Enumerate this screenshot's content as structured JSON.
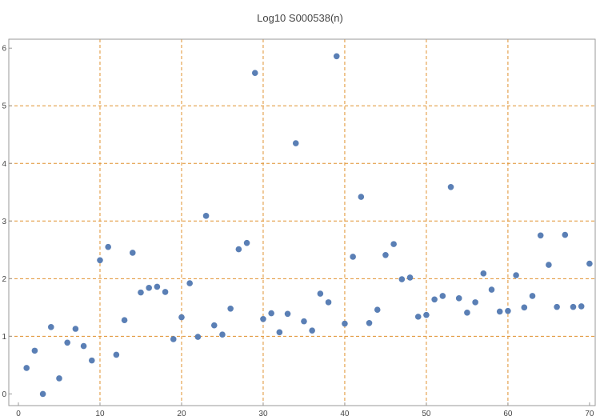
{
  "chart_data": {
    "type": "scatter",
    "title": "Log10 S000538(n)",
    "xlabel": "",
    "ylabel": "",
    "xlim": [
      0,
      70.5
    ],
    "ylim": [
      -0.05,
      6.1
    ],
    "x_ticks": [
      0,
      10,
      20,
      30,
      40,
      50,
      60,
      70
    ],
    "y_ticks": [
      0,
      1,
      2,
      3,
      4,
      5,
      6
    ],
    "x_gridlines": [
      10,
      20,
      30,
      40,
      50,
      60
    ],
    "y_gridlines": [
      1,
      2,
      3,
      4,
      5
    ],
    "grid": true,
    "grid_color": "#e0912f",
    "point_color": "#5a7fb5",
    "points": [
      [
        1,
        0.45
      ],
      [
        2,
        0.75
      ],
      [
        3,
        0.0
      ],
      [
        4,
        1.16
      ],
      [
        5,
        0.27
      ],
      [
        6,
        0.89
      ],
      [
        7,
        1.13
      ],
      [
        8,
        0.83
      ],
      [
        9,
        0.58
      ],
      [
        10,
        2.32
      ],
      [
        11,
        2.55
      ],
      [
        12,
        0.68
      ],
      [
        13,
        1.28
      ],
      [
        14,
        2.45
      ],
      [
        15,
        1.76
      ],
      [
        16,
        1.84
      ],
      [
        17,
        1.86
      ],
      [
        18,
        1.77
      ],
      [
        19,
        0.95
      ],
      [
        20,
        1.33
      ],
      [
        21,
        1.92
      ],
      [
        22,
        0.99
      ],
      [
        23,
        3.09
      ],
      [
        24,
        1.19
      ],
      [
        25,
        1.03
      ],
      [
        26,
        1.48
      ],
      [
        27,
        2.51
      ],
      [
        28,
        2.62
      ],
      [
        29,
        5.57
      ],
      [
        30,
        1.3
      ],
      [
        31,
        1.4
      ],
      [
        32,
        1.07
      ],
      [
        33,
        1.39
      ],
      [
        34,
        4.35
      ],
      [
        35,
        1.26
      ],
      [
        36,
        1.1
      ],
      [
        37,
        1.74
      ],
      [
        38,
        1.59
      ],
      [
        39,
        5.86
      ],
      [
        40,
        1.22
      ],
      [
        41,
        2.38
      ],
      [
        42,
        3.42
      ],
      [
        43,
        1.23
      ],
      [
        44,
        1.46
      ],
      [
        45,
        2.41
      ],
      [
        46,
        2.6
      ],
      [
        47,
        1.99
      ],
      [
        48,
        2.02
      ],
      [
        49,
        1.34
      ],
      [
        50,
        1.37
      ],
      [
        51,
        1.64
      ],
      [
        52,
        1.7
      ],
      [
        53,
        3.59
      ],
      [
        54,
        1.66
      ],
      [
        55,
        1.41
      ],
      [
        56,
        1.59
      ],
      [
        57,
        2.09
      ],
      [
        58,
        1.81
      ],
      [
        59,
        1.43
      ],
      [
        60,
        1.44
      ],
      [
        61,
        2.06
      ],
      [
        62,
        1.5
      ],
      [
        63,
        1.7
      ],
      [
        64,
        2.75
      ],
      [
        65,
        2.24
      ],
      [
        66,
        1.51
      ],
      [
        67,
        2.76
      ],
      [
        68,
        1.51
      ],
      [
        69,
        1.52
      ],
      [
        70,
        2.26
      ]
    ]
  }
}
